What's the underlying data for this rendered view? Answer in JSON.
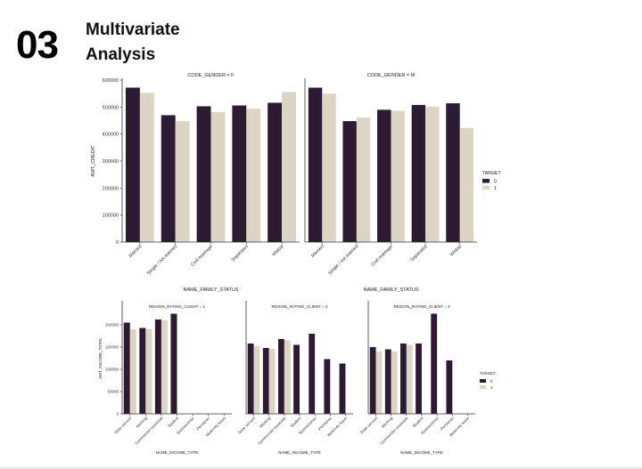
{
  "slide": {
    "number": "03",
    "title_line1": "Multivariate",
    "title_line2": "Analysis"
  },
  "colors": {
    "target0": "#2d1a33",
    "target1": "#ddd5c4",
    "axis": "#333333"
  },
  "chart_data": [
    {
      "type": "bar",
      "title": "CODE_GENDER = F",
      "xlabel": "NAME_FAMILY_STATUS",
      "ylabel": "AMT_CREDIT",
      "ylim": [
        0,
        600000
      ],
      "yticks": [
        0,
        100000,
        200000,
        300000,
        400000,
        500000,
        600000
      ],
      "categories": [
        "Married",
        "Single / not married",
        "Civil marriage",
        "Separated",
        "Widow"
      ],
      "series": [
        {
          "name": "0",
          "values": [
            572000,
            470000,
            503000,
            506000,
            516000
          ]
        },
        {
          "name": "1",
          "values": [
            553000,
            448000,
            481000,
            494000,
            556000
          ]
        }
      ]
    },
    {
      "type": "bar",
      "title": "CODE_GENDER = M",
      "xlabel": "NAME_FAMILY_STATUS",
      "ylabel": "",
      "ylim": [
        0,
        600000
      ],
      "categories": [
        "Married",
        "Single / not married",
        "Civil marriage",
        "Separated",
        "Widow"
      ],
      "series": [
        {
          "name": "0",
          "values": [
            572000,
            448000,
            490000,
            508000,
            514000
          ]
        },
        {
          "name": "1",
          "values": [
            550000,
            461000,
            486000,
            502000,
            423000
          ]
        }
      ],
      "legend": {
        "title": "TARGET",
        "entries": [
          "0",
          "1"
        ],
        "placement": "right"
      }
    },
    {
      "type": "bar",
      "title": "REGION_RATING_CLIENT = 1",
      "xlabel": "NAME_INCOME_TYPE",
      "ylabel": "AMT_INCOME_TOTAL",
      "ylim": [
        0,
        250000
      ],
      "yticks": [
        0,
        50000,
        100000,
        150000,
        200000
      ],
      "categories": [
        "State servant",
        "Working",
        "Commercial associate",
        "Student",
        "Businessman",
        "Pensioner",
        "Maternity leave"
      ],
      "series": [
        {
          "name": "0",
          "values": [
            205000,
            193000,
            212000,
            225000,
            null,
            null,
            null
          ]
        },
        {
          "name": "1",
          "values": [
            190000,
            190000,
            210000,
            null,
            null,
            null,
            null
          ]
        }
      ]
    },
    {
      "type": "bar",
      "title": "REGION_RATING_CLIENT = 2",
      "xlabel": "NAME_INCOME_TYPE",
      "ylabel": "",
      "ylim": [
        0,
        250000
      ],
      "categories": [
        "State servant",
        "Working",
        "Commercial associate",
        "Student",
        "Businessman",
        "Pensioner",
        "Maternity leave"
      ],
      "series": [
        {
          "name": "0",
          "values": [
            158000,
            148000,
            168000,
            155000,
            180000,
            123000,
            113000
          ]
        },
        {
          "name": "1",
          "values": [
            152000,
            146000,
            165000,
            null,
            null,
            null,
            null
          ]
        }
      ]
    },
    {
      "type": "bar",
      "title": "REGION_RATING_CLIENT = 3",
      "xlabel": "NAME_INCOME_TYPE",
      "ylabel": "",
      "ylim": [
        0,
        250000
      ],
      "categories": [
        "State servant",
        "Working",
        "Commercial associate",
        "Student",
        "Businessman",
        "Pensioner",
        "Maternity leave"
      ],
      "series": [
        {
          "name": "0",
          "values": [
            150000,
            145000,
            158000,
            158000,
            225000,
            120000,
            null
          ]
        },
        {
          "name": "1",
          "values": [
            140000,
            140000,
            155000,
            null,
            null,
            null,
            null
          ]
        }
      ],
      "legend": {
        "title": "TARGET",
        "entries": [
          "0",
          "1"
        ],
        "placement": "right"
      }
    }
  ]
}
